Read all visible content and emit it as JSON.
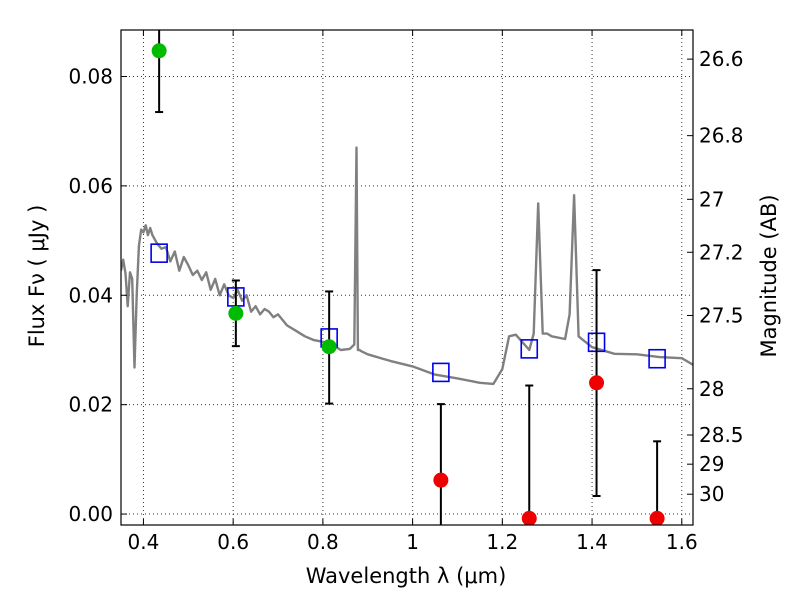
{
  "chart_data": {
    "type": "scatter",
    "title": "",
    "xlabel": "Wavelength  λ (μm)",
    "ylabel": "Flux  Fν  ( μJy )",
    "ylabel_right": "Magnitude (AB)",
    "xlim": [
      0.35,
      1.625
    ],
    "ylim": [
      -0.002,
      0.0885
    ],
    "grid": true,
    "x_ticks": [
      {
        "v": 0.4,
        "label": "0.4"
      },
      {
        "v": 0.6,
        "label": "0.6"
      },
      {
        "v": 0.8,
        "label": "0.8"
      },
      {
        "v": 1.0,
        "label": "1"
      },
      {
        "v": 1.2,
        "label": "1.2"
      },
      {
        "v": 1.4,
        "label": "1.4"
      },
      {
        "v": 1.6,
        "label": "1.6"
      }
    ],
    "y_ticks": [
      {
        "v": 0.0,
        "label": "0.00"
      },
      {
        "v": 0.02,
        "label": "0.02"
      },
      {
        "v": 0.04,
        "label": "0.04"
      },
      {
        "v": 0.06,
        "label": "0.06"
      },
      {
        "v": 0.08,
        "label": "0.08"
      }
    ],
    "mag_ticks": [
      {
        "v": 26.6,
        "label": "26.6"
      },
      {
        "v": 26.8,
        "label": "26.8"
      },
      {
        "v": 27,
        "label": "27"
      },
      {
        "v": 27.2,
        "label": "27.2"
      },
      {
        "v": 27.5,
        "label": "27.5"
      },
      {
        "v": 28,
        "label": "28"
      },
      {
        "v": 28.5,
        "label": "28.5"
      },
      {
        "v": 29,
        "label": "29"
      },
      {
        "v": 30,
        "label": "30"
      }
    ],
    "model_sed": {
      "color": "#808080",
      "x": [
        0.35,
        0.355,
        0.36,
        0.365,
        0.37,
        0.375,
        0.38,
        0.385,
        0.39,
        0.395,
        0.4,
        0.405,
        0.41,
        0.415,
        0.42,
        0.43,
        0.44,
        0.45,
        0.46,
        0.47,
        0.48,
        0.49,
        0.5,
        0.51,
        0.52,
        0.53,
        0.54,
        0.55,
        0.56,
        0.57,
        0.58,
        0.59,
        0.6,
        0.61,
        0.62,
        0.63,
        0.64,
        0.65,
        0.66,
        0.67,
        0.68,
        0.69,
        0.7,
        0.72,
        0.74,
        0.76,
        0.78,
        0.8,
        0.82,
        0.84,
        0.86,
        0.87,
        0.875,
        0.878,
        0.882,
        0.885,
        0.9,
        0.95,
        1.0,
        1.05,
        1.1,
        1.15,
        1.18,
        1.2,
        1.215,
        1.23,
        1.26,
        1.27,
        1.28,
        1.29,
        1.3,
        1.31,
        1.34,
        1.35,
        1.36,
        1.37,
        1.38,
        1.4,
        1.45,
        1.5,
        1.55,
        1.6,
        1.625
      ],
      "y": [
        0.0445,
        0.0465,
        0.044,
        0.038,
        0.0442,
        0.043,
        0.0268,
        0.04,
        0.049,
        0.052,
        0.0515,
        0.0528,
        0.051,
        0.0523,
        0.051,
        0.0495,
        0.0485,
        0.0488,
        0.0462,
        0.048,
        0.0445,
        0.047,
        0.0455,
        0.0437,
        0.0445,
        0.0428,
        0.0442,
        0.041,
        0.043,
        0.04,
        0.042,
        0.04,
        0.0395,
        0.041,
        0.039,
        0.04,
        0.037,
        0.038,
        0.0365,
        0.0375,
        0.037,
        0.036,
        0.0365,
        0.0345,
        0.0335,
        0.0325,
        0.0318,
        0.0315,
        0.031,
        0.03,
        0.0302,
        0.031,
        0.067,
        0.03,
        0.03,
        0.0298,
        0.0292,
        0.028,
        0.027,
        0.0255,
        0.0248,
        0.024,
        0.0238,
        0.0265,
        0.0325,
        0.0328,
        0.03,
        0.033,
        0.0568,
        0.033,
        0.033,
        0.0325,
        0.032,
        0.0365,
        0.0583,
        0.0325,
        0.0318,
        0.0305,
        0.0293,
        0.0292,
        0.0287,
        0.0285,
        0.0273
      ]
    },
    "series": [
      {
        "marker": "square",
        "color": "#0000ee",
        "points": [
          {
            "x": 0.435,
            "y": 0.0477
          },
          {
            "x": 0.606,
            "y": 0.0397
          },
          {
            "x": 0.814,
            "y": 0.0322
          },
          {
            "x": 1.063,
            "y": 0.0259
          },
          {
            "x": 1.26,
            "y": 0.0302
          },
          {
            "x": 1.41,
            "y": 0.0314
          },
          {
            "x": 1.545,
            "y": 0.0284
          }
        ]
      },
      {
        "marker": "circle",
        "color": "#00bb00",
        "points": [
          {
            "x": 0.435,
            "y": 0.0847,
            "err_lo": 0.0735,
            "err_hi": 0.0885
          },
          {
            "x": 0.606,
            "y": 0.0367,
            "err_lo": 0.0307,
            "err_hi": 0.0427
          },
          {
            "x": 0.814,
            "y": 0.0306,
            "err_lo": 0.0202,
            "err_hi": 0.0407
          }
        ]
      },
      {
        "marker": "circle",
        "color": "#ee0000",
        "points": [
          {
            "x": 1.063,
            "y": 0.0062,
            "err_lo": -0.002,
            "err_hi": 0.0201
          },
          {
            "x": 1.26,
            "y": -0.0008,
            "err_lo": -0.002,
            "err_hi": 0.0235
          },
          {
            "x": 1.41,
            "y": 0.024,
            "err_lo": 0.0033,
            "err_hi": 0.0446
          },
          {
            "x": 1.545,
            "y": -0.0008,
            "err_lo": -0.002,
            "err_hi": 0.0133
          }
        ]
      }
    ]
  }
}
